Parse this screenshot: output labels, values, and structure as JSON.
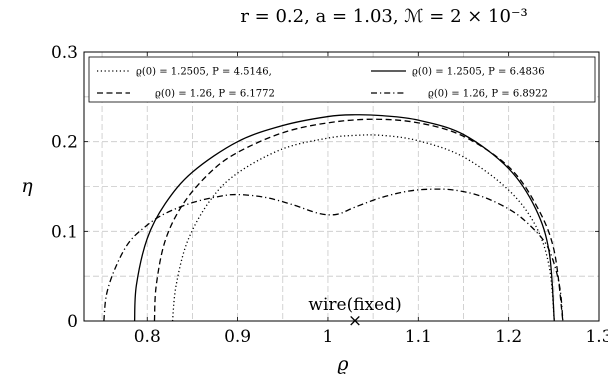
{
  "chart_data": {
    "type": "line",
    "title": "r = 0.2, a = 1.03, ℳ = 2 × 10⁻³",
    "xlabel": "ϱ",
    "ylabel": "η",
    "xlim": [
      0.73,
      1.3
    ],
    "ylim": [
      0,
      0.3
    ],
    "grid": true,
    "xticks": [
      "0.8",
      "0.9",
      "1",
      "1.1",
      "1.2",
      "1.3"
    ],
    "yticks": [
      "0",
      "0.1",
      "0.2",
      "0.3"
    ],
    "legend_position": "top",
    "series": [
      {
        "name": "ϱ(0) = 1.2505, P = 4.5146,",
        "style": "dotted",
        "x": [
          0.828,
          0.832,
          0.845,
          0.87,
          0.9,
          0.95,
          1.0,
          1.03,
          1.06,
          1.1,
          1.15,
          1.2,
          1.23,
          1.245,
          1.2505
        ],
        "y": [
          0.0,
          0.04,
          0.09,
          0.135,
          0.165,
          0.192,
          0.204,
          0.207,
          0.207,
          0.201,
          0.183,
          0.146,
          0.106,
          0.06,
          0.0
        ]
      },
      {
        "name": "ϱ(0) = 1.2505, P = 6.4836",
        "style": "solid",
        "x": [
          0.786,
          0.788,
          0.8,
          0.82,
          0.85,
          0.9,
          0.95,
          1.0,
          1.03,
          1.06,
          1.1,
          1.15,
          1.2,
          1.23,
          1.245,
          1.2505
        ],
        "y": [
          0.0,
          0.04,
          0.092,
          0.131,
          0.166,
          0.2,
          0.218,
          0.228,
          0.23,
          0.229,
          0.224,
          0.208,
          0.17,
          0.125,
          0.076,
          0.0
        ]
      },
      {
        "name": "ϱ(0) = 1.26, P = 6.1772",
        "style": "dashed",
        "x": [
          0.808,
          0.81,
          0.82,
          0.84,
          0.87,
          0.9,
          0.95,
          1.0,
          1.05,
          1.1,
          1.15,
          1.2,
          1.23,
          1.25,
          1.26
        ],
        "y": [
          0.0,
          0.04,
          0.09,
          0.131,
          0.166,
          0.188,
          0.21,
          0.221,
          0.225,
          0.221,
          0.206,
          0.172,
          0.13,
          0.08,
          0.0
        ]
      },
      {
        "name": "ϱ(0) = 1.26, P = 6.8922",
        "style": "dashdot",
        "x": [
          0.752,
          0.755,
          0.765,
          0.78,
          0.8,
          0.82,
          0.85,
          0.88,
          0.9,
          0.93,
          0.96,
          0.99,
          1.01,
          1.03,
          1.06,
          1.09,
          1.115,
          1.14,
          1.17,
          1.2,
          1.22,
          1.24,
          1.25,
          1.257,
          1.26
        ],
        "y": [
          0.0,
          0.03,
          0.06,
          0.088,
          0.107,
          0.12,
          0.132,
          0.139,
          0.141,
          0.138,
          0.13,
          0.12,
          0.119,
          0.127,
          0.138,
          0.145,
          0.147,
          0.146,
          0.139,
          0.125,
          0.11,
          0.088,
          0.065,
          0.035,
          0.0
        ]
      }
    ],
    "annotations": [
      {
        "text": "wire(fixed)",
        "x": 1.03,
        "y": 0.0,
        "marker": "×"
      }
    ]
  }
}
